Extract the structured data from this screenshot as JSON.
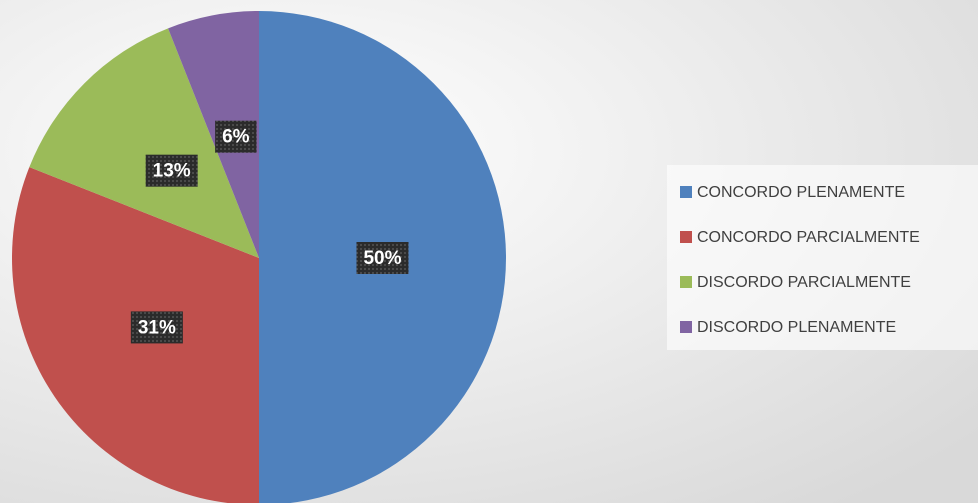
{
  "chart_data": {
    "type": "pie",
    "categories": [
      "CONCORDO PLENAMENTE",
      "CONCORDO PARCIALMENTE",
      "DISCORDO PARCIALMENTE",
      "DISCORDO PLENAMENTE"
    ],
    "values": [
      50,
      31,
      13,
      6
    ],
    "value_labels": [
      "50%",
      "31%",
      "13%",
      "6%"
    ],
    "colors": [
      "#4f81bd",
      "#c0504d",
      "#9bbb59",
      "#8064a2"
    ],
    "legend": "right"
  }
}
